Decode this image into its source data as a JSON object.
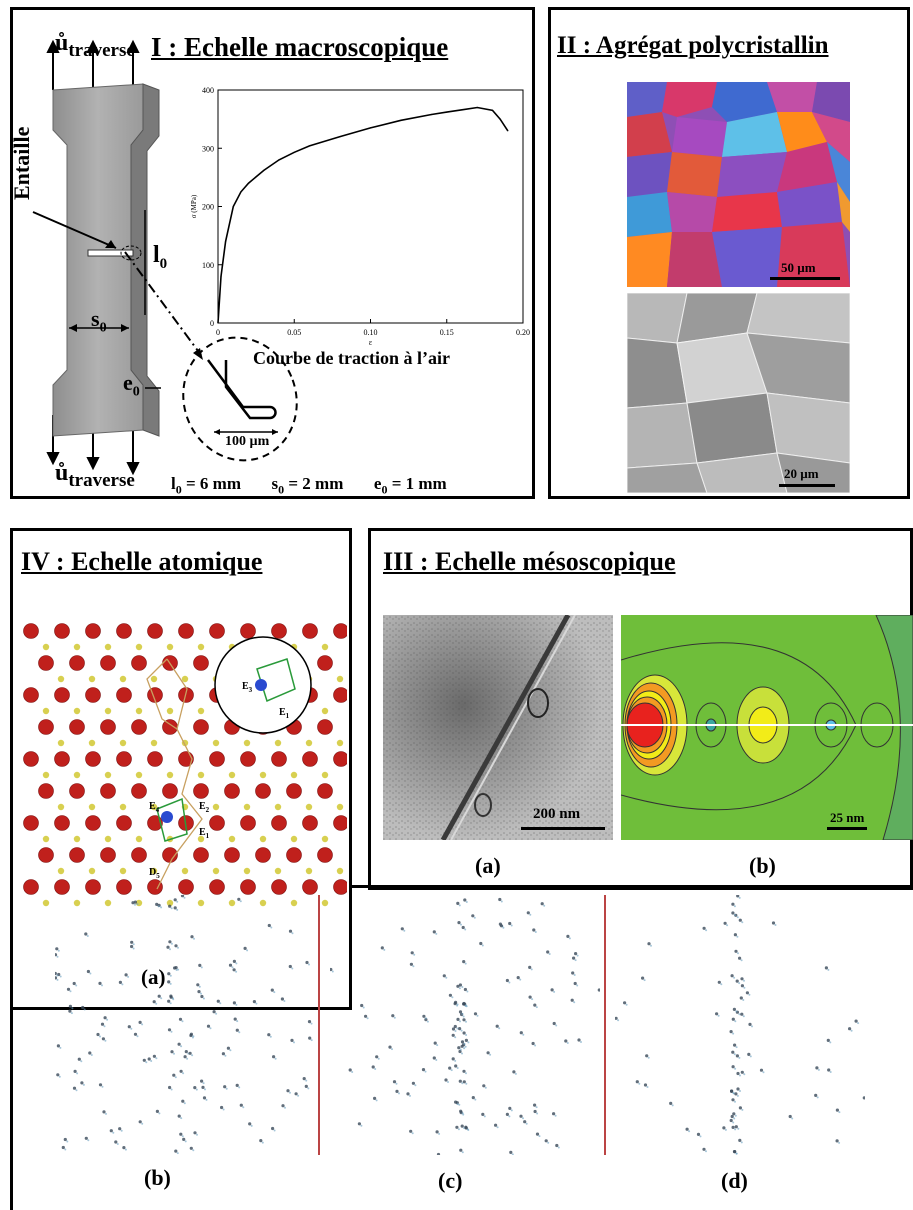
{
  "panels": {
    "p1": {
      "title": "I : Echelle macroscopique",
      "u_top_symbol": "ů",
      "u_top_sub": "traverse",
      "u_bot_symbol": "ů",
      "u_bot_sub": "traverse",
      "notch_label": "Entaille",
      "l0_label": "l",
      "l0_sub": "0",
      "s0_label": "s",
      "s0_sub": "0",
      "e0_label": "e",
      "e0_sub": "0",
      "detail_scale": "100 µm",
      "chart_caption": "Courbe de traction à l’air",
      "dims": [
        {
          "name": "l",
          "sub": "0",
          "value": " = 6 mm"
        },
        {
          "name": "s",
          "sub": "0",
          "value": " = 2 mm"
        },
        {
          "name": "e",
          "sub": "0",
          "value": " = 1 mm"
        }
      ]
    },
    "p2": {
      "title": "II : Agrégat polycristallin",
      "scale_top": "50 µm",
      "scale_bottom": "20 µm"
    },
    "p3": {
      "title": "III : Echelle mésoscopique",
      "scale_a": "200 nm",
      "scale_b": "25 nm",
      "label_a": "(a)",
      "label_b": "(b)"
    },
    "p4": {
      "title": "IV : Echelle atomique",
      "label_a": "(a)",
      "atom_labels": {
        "e3": "E",
        "e3_sub": "3",
        "e1a": "E",
        "e1a_sub": "1",
        "e4": "E",
        "e4_sub": "4",
        "e2": "E",
        "e2_sub": "2",
        "e1b": "E",
        "e1b_sub": "1",
        "d5": "D",
        "d5_sub": "5"
      }
    },
    "bottom": {
      "label_b": "(b)",
      "label_c": "(c)",
      "label_d": "(d)"
    }
  },
  "colors": {
    "specimen": "#9a9a9a",
    "atom_red": "#c0201c",
    "atom_yellow": "#d8d050",
    "field_green": "#6fbe3a",
    "field_red": "#e8221e",
    "field_yellow": "#f2ec18",
    "field_orange": "#f39a22"
  },
  "chart_data": {
    "type": "line",
    "title": "",
    "xlabel": "ε",
    "ylabel": "σ (MPa)",
    "xlim": [
      0,
      0.2
    ],
    "ylim": [
      0,
      400
    ],
    "xticks": [
      "0",
      "0.05",
      "0.10",
      "0.15",
      "0.20"
    ],
    "yticks": [
      "0",
      "100",
      "200",
      "300",
      "400"
    ],
    "series": [
      {
        "x": [
          0,
          0.002,
          0.005,
          0.01,
          0.015,
          0.02,
          0.03,
          0.04,
          0.05,
          0.06,
          0.08,
          0.1,
          0.12,
          0.14,
          0.15,
          0.16,
          0.17,
          0.18,
          0.185,
          0.19
        ],
        "values": [
          0,
          80,
          140,
          200,
          225,
          240,
          262,
          280,
          293,
          304,
          320,
          335,
          348,
          358,
          362,
          366,
          370,
          365,
          350,
          330
        ]
      }
    ]
  }
}
